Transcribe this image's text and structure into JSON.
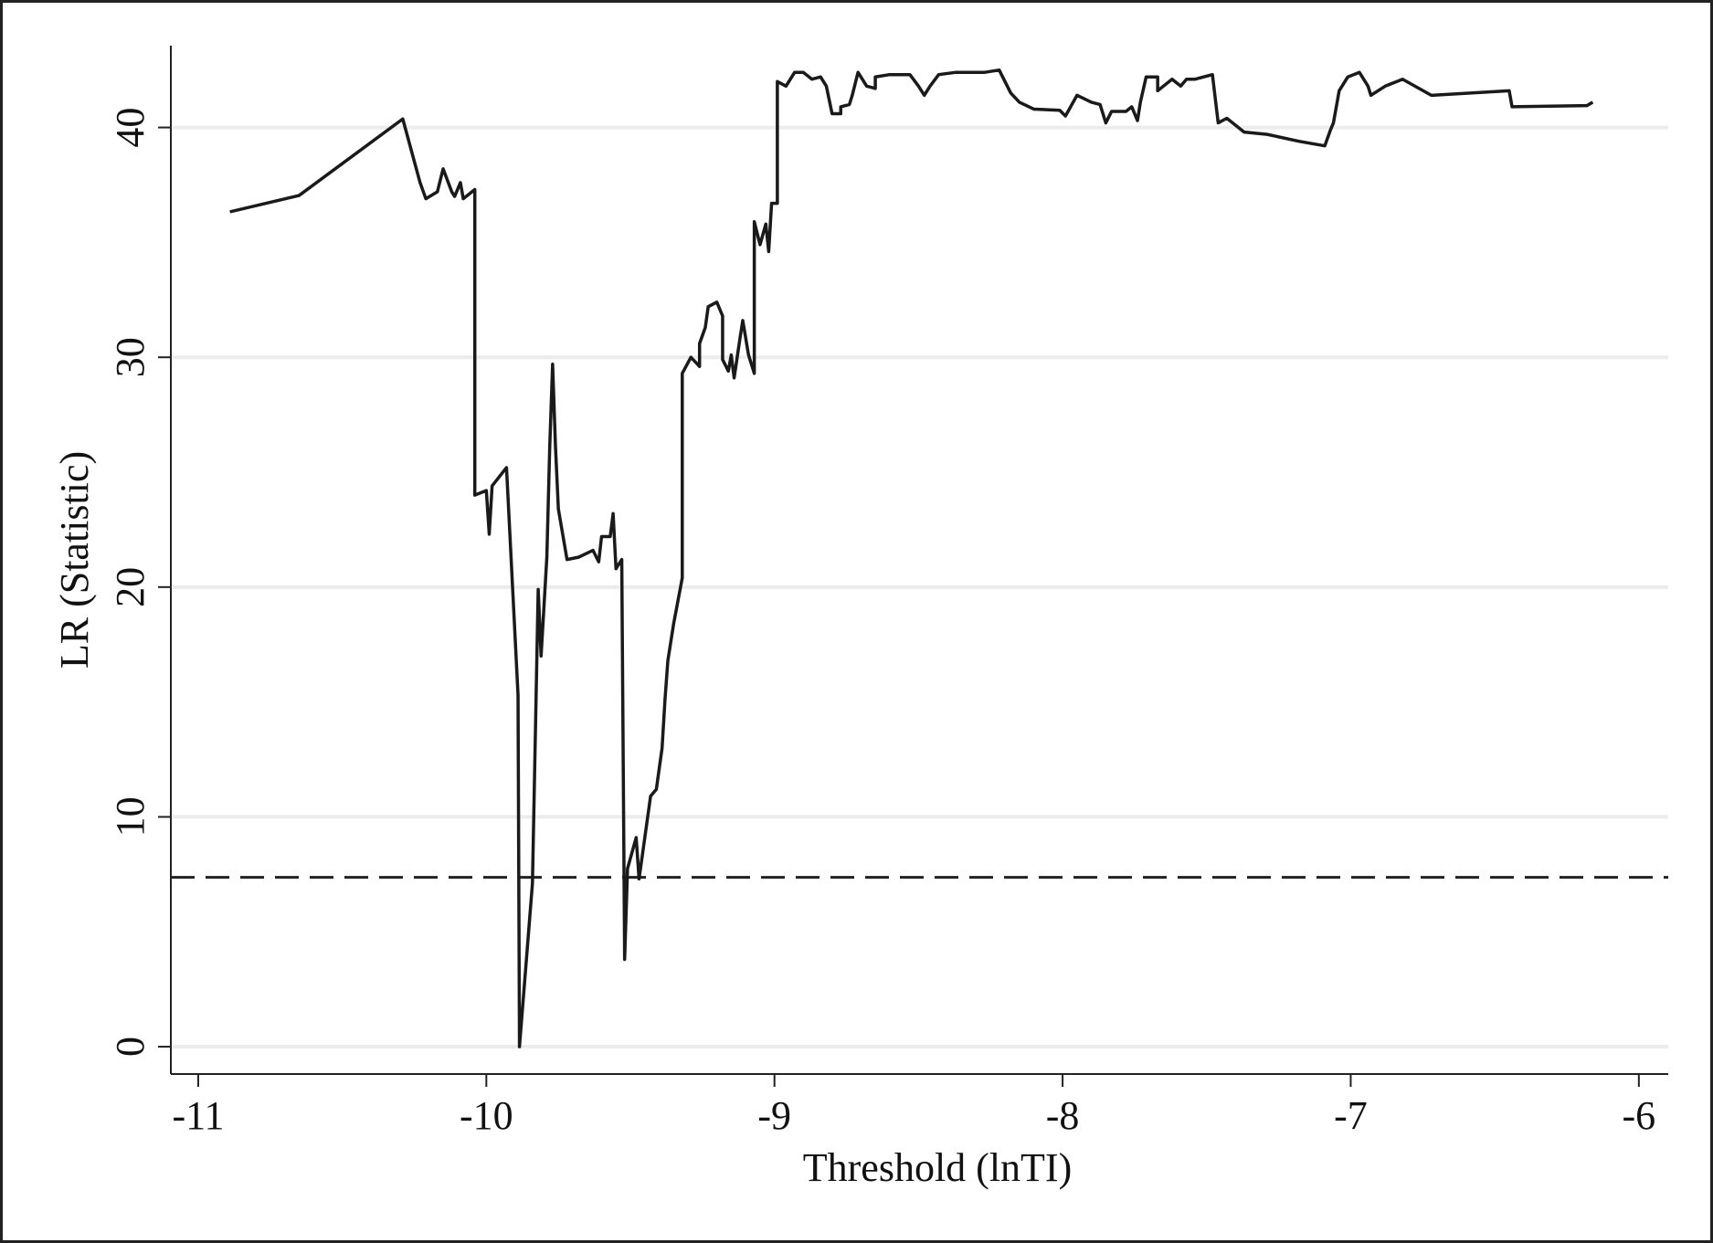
{
  "chart_data": {
    "type": "line",
    "xlabel": "Threshold (lnTI)",
    "ylabel": "LR (Statistic)",
    "color": "#1a1a1a",
    "grid": true,
    "reference_line": 7.37,
    "xlim": [
      -11.095,
      -5.898
    ],
    "ylim": [
      -1.19,
      43.56
    ],
    "xticks": [
      -11,
      -10,
      -9,
      -8,
      -7,
      -6
    ],
    "yticks": [
      0,
      10,
      20,
      30,
      40
    ],
    "x": [
      -10.89,
      -10.65,
      -10.29,
      -10.23,
      -10.21,
      -10.17,
      -10.15,
      -10.12,
      -10.11,
      -10.09,
      -10.08,
      -10.04,
      -10.04,
      -10.04,
      -10.0,
      -9.99,
      -9.98,
      -9.93,
      -9.89,
      -9.885,
      -9.84,
      -9.82,
      -9.81,
      -9.79,
      -9.78,
      -9.77,
      -9.76,
      -9.75,
      -9.72,
      -9.68,
      -9.63,
      -9.61,
      -9.6,
      -9.57,
      -9.56,
      -9.55,
      -9.53,
      -9.52,
      -9.51,
      -9.48,
      -9.47,
      -9.43,
      -9.41,
      -9.39,
      -9.38,
      -9.37,
      -9.35,
      -9.32,
      -9.32,
      -9.29,
      -9.26,
      -9.26,
      -9.24,
      -9.23,
      -9.2,
      -9.18,
      -9.18,
      -9.16,
      -9.15,
      -9.14,
      -9.12,
      -9.11,
      -9.09,
      -9.07,
      -9.07,
      -9.05,
      -9.03,
      -9.02,
      -9.01,
      -8.99,
      -8.99,
      -8.96,
      -8.93,
      -8.9,
      -8.87,
      -8.84,
      -8.82,
      -8.8,
      -8.77,
      -8.77,
      -8.74,
      -8.73,
      -8.71,
      -8.68,
      -8.65,
      -8.65,
      -8.6,
      -8.53,
      -8.5,
      -8.48,
      -8.46,
      -8.43,
      -8.37,
      -8.27,
      -8.22,
      -8.18,
      -8.15,
      -8.1,
      -8.01,
      -7.99,
      -7.95,
      -7.9,
      -7.87,
      -7.85,
      -7.83,
      -7.78,
      -7.76,
      -7.74,
      -7.73,
      -7.71,
      -7.67,
      -7.67,
      -7.62,
      -7.59,
      -7.57,
      -7.54,
      -7.48,
      -7.46,
      -7.43,
      -7.37,
      -7.29,
      -7.18,
      -7.09,
      -7.07,
      -7.06,
      -7.04,
      -7.01,
      -6.97,
      -6.94,
      -6.93,
      -6.88,
      -6.82,
      -6.72,
      -6.45,
      -6.44,
      -6.18,
      -6.16
    ],
    "values": [
      36.33,
      37.04,
      40.37,
      37.6,
      36.9,
      37.2,
      38.2,
      37.2,
      37.0,
      37.6,
      36.9,
      37.3,
      33.4,
      24.0,
      24.2,
      22.3,
      24.4,
      25.2,
      15.3,
      0,
      7.1,
      19.9,
      17.0,
      21.3,
      26.1,
      29.7,
      26.1,
      23.4,
      21.2,
      21.3,
      21.6,
      21.1,
      22.2,
      22.2,
      23.2,
      20.8,
      21.2,
      3.8,
      7.75,
      9.1,
      7.3,
      10.9,
      11.2,
      13.0,
      15.1,
      16.8,
      18.4,
      20.4,
      29.3,
      30.0,
      29.6,
      30.6,
      31.3,
      32.2,
      32.4,
      31.8,
      29.9,
      29.4,
      30.1,
      29.1,
      30.8,
      31.6,
      30.1,
      29.3,
      35.9,
      34.9,
      35.8,
      34.6,
      36.7,
      36.7,
      42.0,
      41.8,
      42.4,
      42.4,
      42.1,
      42.2,
      41.8,
      40.6,
      40.6,
      40.9,
      41.0,
      41.4,
      42.4,
      41.8,
      41.7,
      42.2,
      42.3,
      42.3,
      41.8,
      41.4,
      41.8,
      42.3,
      42.4,
      42.4,
      42.5,
      41.5,
      41.1,
      40.8,
      40.75,
      40.5,
      41.4,
      41.1,
      41.0,
      40.2,
      40.7,
      40.7,
      40.9,
      40.3,
      41.1,
      42.2,
      42.2,
      41.6,
      42.1,
      41.8,
      42.1,
      42.1,
      42.3,
      40.2,
      40.4,
      39.8,
      39.7,
      39.4,
      39.2,
      39.9,
      40.2,
      41.6,
      42.2,
      42.4,
      41.8,
      41.4,
      41.8,
      42.1,
      41.4,
      41.6,
      40.9,
      40.95,
      41.1
    ]
  }
}
